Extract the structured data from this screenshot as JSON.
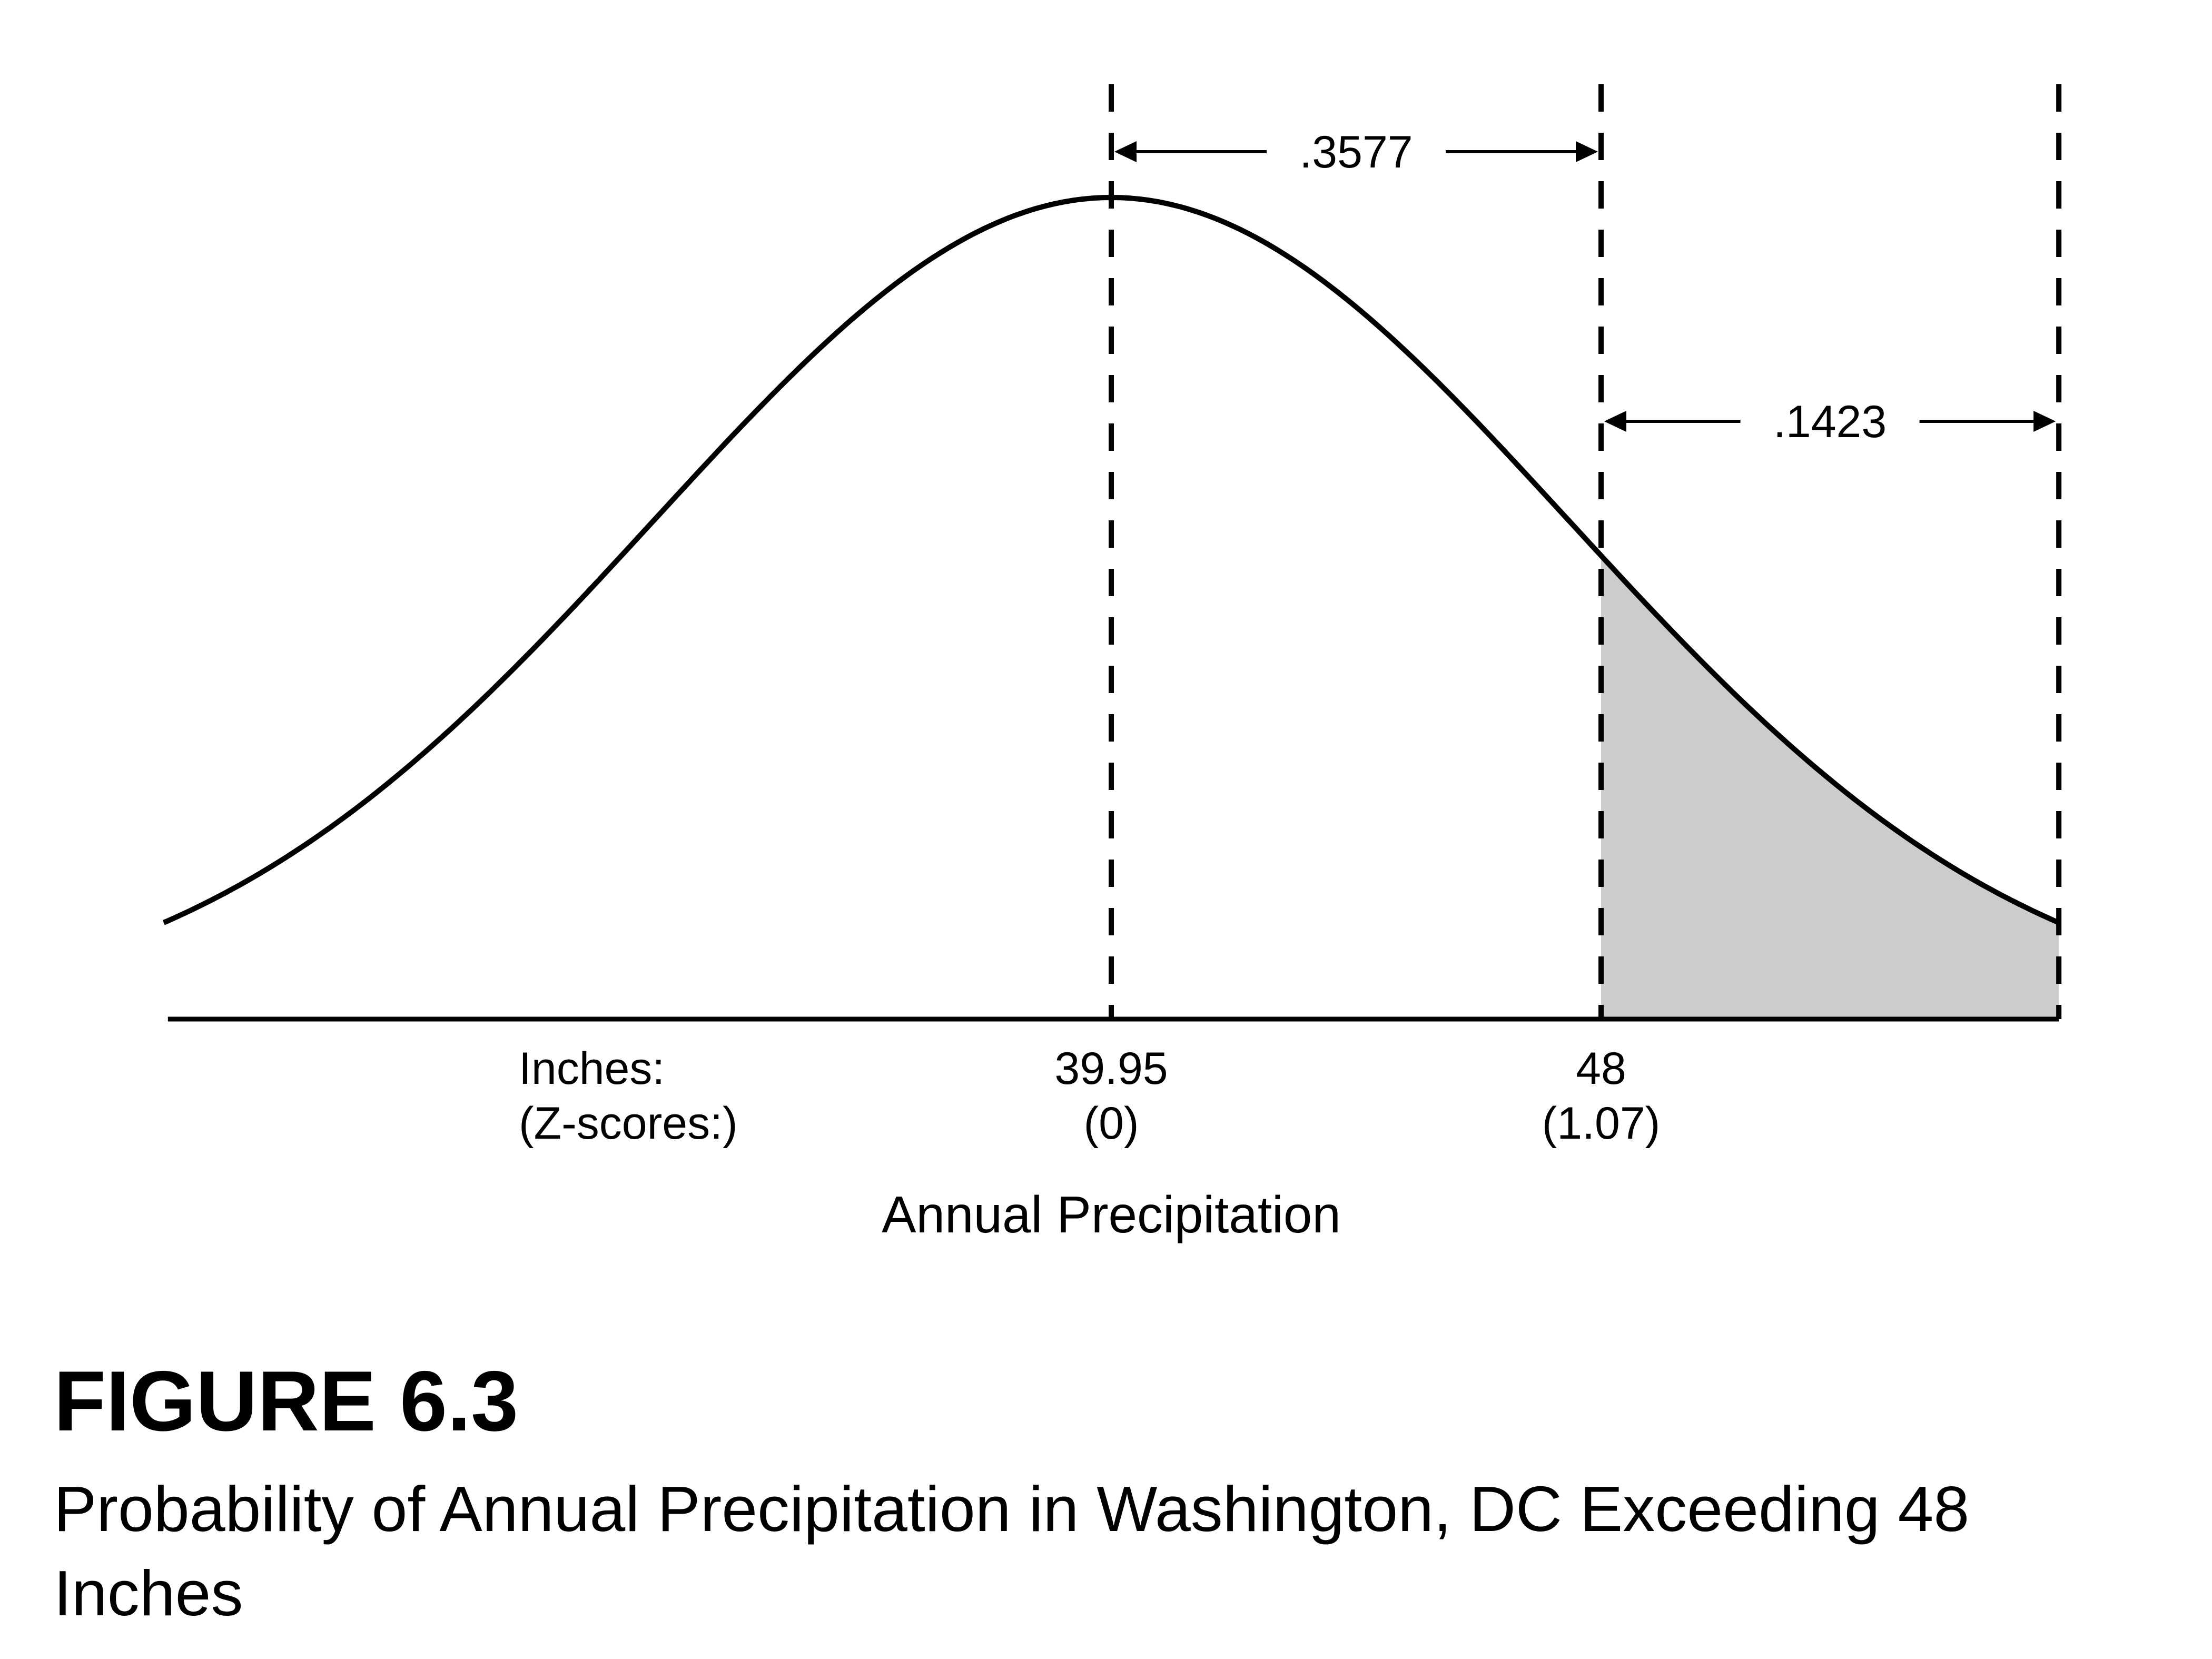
{
  "figure": {
    "number": "FIGURE 6.3",
    "caption": "Probability of Annual Precipitation in Washington, DC Exceeding 48 Inches",
    "xlabel": "Annual Precipitation"
  },
  "axis": {
    "row_label_1": "Inches:",
    "row_label_2": "(Z-scores:)"
  },
  "markers": [
    {
      "value": "39.95",
      "z": "(0)"
    },
    {
      "value": "48",
      "z": "(1.07)"
    }
  ],
  "areas": {
    "mean_to_48": ".3577",
    "beyond_48": ".1423"
  },
  "chart_data": {
    "type": "area",
    "distribution": "normal",
    "mean": 39.95,
    "z_markers": [
      0,
      1.07
    ],
    "z_range_shown": [
      -2.07,
      2.07
    ],
    "shaded_region": {
      "from_z": 1.07,
      "to": "right tail",
      "probability": 0.1423
    },
    "area_mean_to_1_07": 0.3577,
    "shade_color": "#cccccc",
    "line_color": "#000000"
  }
}
